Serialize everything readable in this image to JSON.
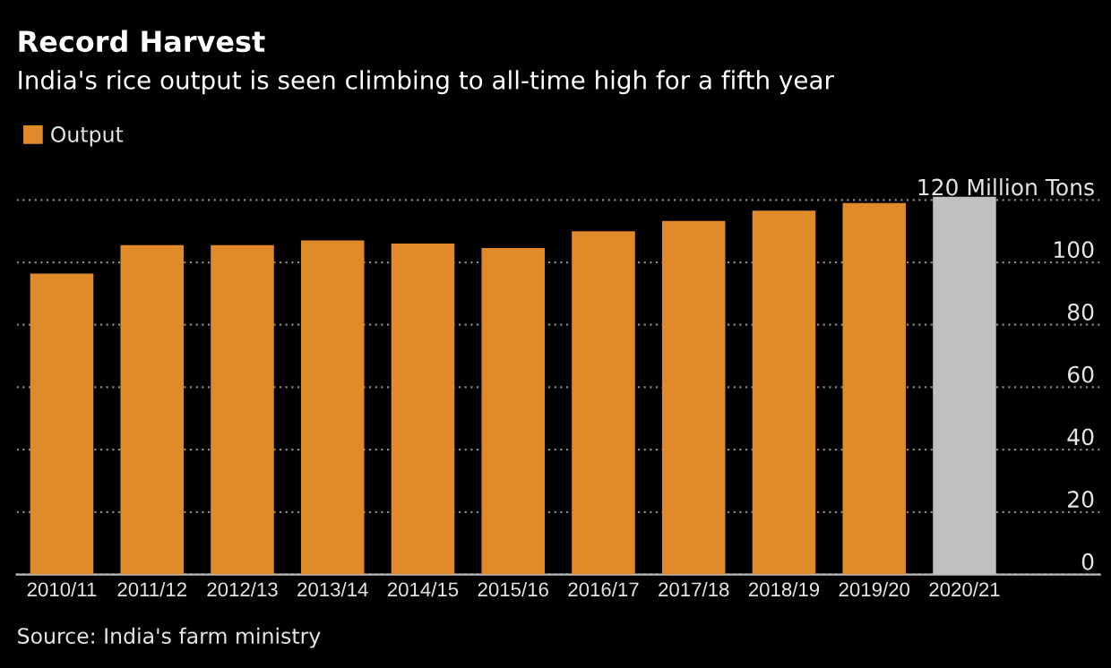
{
  "chart_data": {
    "type": "bar",
    "title": "Record Harvest",
    "subtitle": "India's rice output is seen climbing to all-time high for a fifth year",
    "categories": [
      "2010/11",
      "2011/12",
      "2012/13",
      "2013/14",
      "2014/15",
      "2015/16",
      "2016/17",
      "2017/18",
      "2018/19",
      "2019/20",
      "2020/21"
    ],
    "series": [
      {
        "name": "Output",
        "color": "#e08a2a",
        "colors": [
          "#e08a2a",
          "#e08a2a",
          "#e08a2a",
          "#e08a2a",
          "#e08a2a",
          "#e08a2a",
          "#e08a2a",
          "#e08a2a",
          "#e08a2a",
          "#e08a2a",
          "#c0c0c0"
        ],
        "values": [
          96.4,
          105.5,
          105.5,
          107,
          106,
          104.6,
          110,
          113.3,
          116.6,
          119,
          121
        ]
      }
    ],
    "ylim": [
      0,
      122
    ],
    "yticks": [
      0,
      20,
      40,
      60,
      80,
      100,
      {
        "value": 120,
        "label": "120 Million Tons"
      }
    ],
    "grid": "y",
    "legend": "top left",
    "annotations": [
      "Source: India's farm ministry"
    ]
  }
}
